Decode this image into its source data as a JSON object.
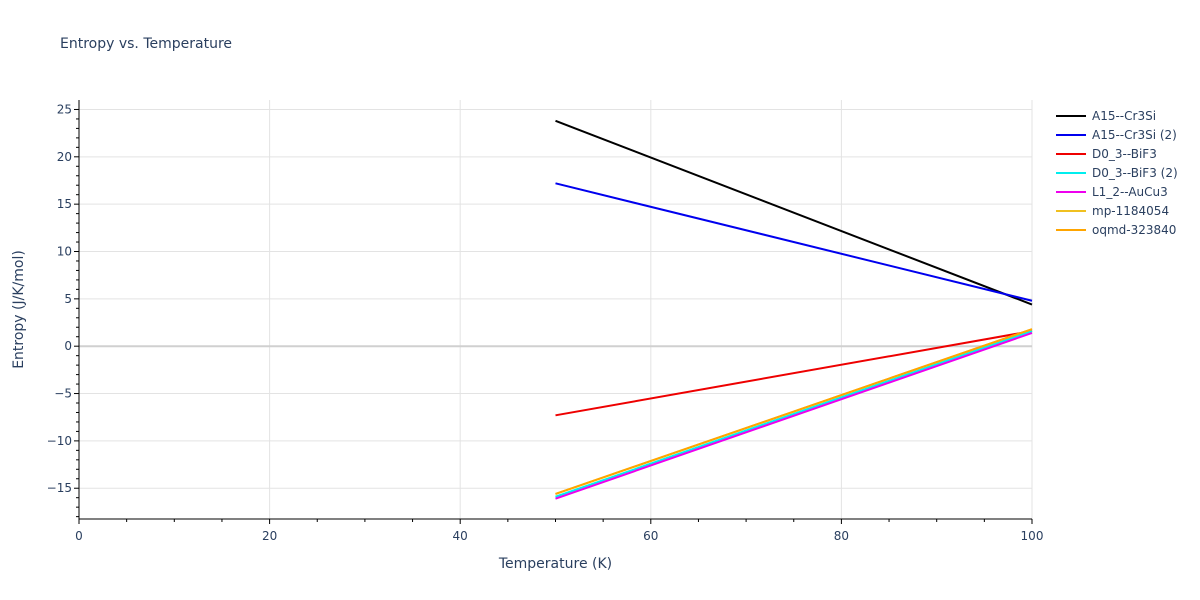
{
  "chart_data": {
    "type": "line",
    "title": "Entropy vs. Temperature",
    "xlabel": "Temperature (K)",
    "ylabel": "Entropy (J/K/mol)",
    "xlim": [
      0,
      100
    ],
    "ylim": [
      -18.25,
      26
    ],
    "x_ticks": [
      0,
      20,
      40,
      60,
      80,
      100
    ],
    "y_ticks": [
      -15,
      -10,
      -5,
      0,
      5,
      10,
      15,
      20,
      25
    ],
    "grid": true,
    "legend_position": "right",
    "series": [
      {
        "name": "A15--Cr3Si",
        "color": "#000000",
        "x": [
          50,
          100
        ],
        "y": [
          23.8,
          4.4
        ]
      },
      {
        "name": "A15--Cr3Si (2)",
        "color": "#0000ee",
        "x": [
          50,
          100
        ],
        "y": [
          17.2,
          4.8
        ]
      },
      {
        "name": "D0_3--BiF3",
        "color": "#ee0000",
        "x": [
          50,
          100
        ],
        "y": [
          -7.3,
          1.6
        ]
      },
      {
        "name": "D0_3--BiF3 (2)",
        "color": "#00eeee",
        "x": [
          50,
          100
        ],
        "y": [
          -15.9,
          1.6
        ]
      },
      {
        "name": "L1_2--AuCu3",
        "color": "#ee00ee",
        "x": [
          50,
          100
        ],
        "y": [
          -16.1,
          1.4
        ]
      },
      {
        "name": "mp-1184054",
        "color": "#f0c020",
        "x": [
          50,
          100
        ],
        "y": [
          -15.6,
          1.8
        ]
      },
      {
        "name": "oqmd-323840",
        "color": "#ffa500",
        "x": [
          50,
          100
        ],
        "y": [
          -15.6,
          1.8
        ]
      }
    ]
  }
}
